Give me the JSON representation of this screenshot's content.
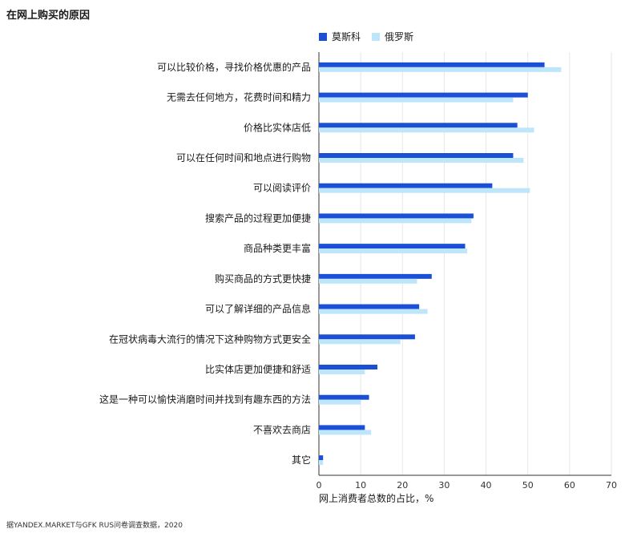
{
  "header": {
    "title": "在网上购买的原因"
  },
  "source_note": "据YANDEX.MARKET与GFK RUS问卷调查数据，2020",
  "colors": {
    "moscow": "#1a4fd6",
    "russia": "#bde6fb",
    "grid": "#e6e6e6",
    "axis": "#333333"
  },
  "chart_data": {
    "type": "bar",
    "orientation": "horizontal",
    "title": "在网上购买的原因",
    "xlabel": "网上消费者总数的占比，%",
    "ylabel": "",
    "xlim": [
      0,
      70
    ],
    "xticks": [
      0,
      10,
      20,
      30,
      40,
      50,
      60,
      70
    ],
    "grid": true,
    "legend_position": "top",
    "categories": [
      "可以比较价格，寻找价格优惠的产品",
      "无需去任何地方，花费时间和精力",
      "价格比实体店低",
      "可以在任何时间和地点进行购物",
      "可以阅读评价",
      "搜索产品的过程更加便捷",
      "商品种类更丰富",
      "购买商品的方式更快捷",
      "可以了解详细的产品信息",
      "在冠状病毒大流行的情况下这种购物方式更安全",
      "比实体店更加便捷和舒适",
      "这是一种可以愉快消磨时间并找到有趣东西的方法",
      "不喜欢去商店",
      "其它"
    ],
    "series": [
      {
        "name": "莫斯科",
        "values": [
          54,
          50,
          47.5,
          46.5,
          41.5,
          37,
          35,
          27,
          24,
          23,
          14,
          12,
          11,
          1
        ]
      },
      {
        "name": "俄罗斯",
        "values": [
          58,
          46.5,
          51.5,
          49,
          50.5,
          36.5,
          35.5,
          23.5,
          26,
          19.5,
          11,
          10,
          12.5,
          1
        ]
      }
    ]
  }
}
